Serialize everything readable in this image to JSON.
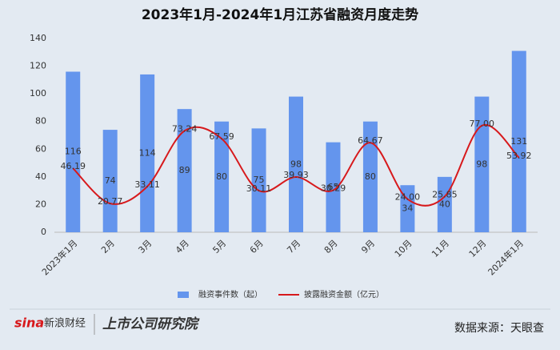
{
  "chart_data": {
    "type": "bar_line",
    "title": "2023年1月-2024年1月江苏省融资月度走势",
    "categories": [
      "2023年1月",
      "2月",
      "3月",
      "4月",
      "5月",
      "6月",
      "7月",
      "8月",
      "9月",
      "10月",
      "11月",
      "12月",
      "2024年1月"
    ],
    "series": [
      {
        "name": "融资事件数（起）",
        "type": "bar",
        "color": "#6495ed",
        "values": [
          116,
          74,
          114,
          89,
          80,
          75,
          98,
          65,
          80,
          34,
          40,
          98,
          131
        ]
      },
      {
        "name": "披露融资金额（亿元）",
        "type": "line",
        "color": "#d7191c",
        "values": [
          46.19,
          20.77,
          33.11,
          73.24,
          67.59,
          30.11,
          39.93,
          30.29,
          64.67,
          24.0,
          25.85,
          77.0,
          53.92
        ],
        "value_labels": [
          "46.19",
          "20.77",
          "33.11",
          "73.24",
          "67.59",
          "30.11",
          "39.93",
          "30.29",
          "64.67",
          "24.00",
          "25.85",
          "77.00",
          "53.92"
        ]
      }
    ],
    "ylim": [
      0,
      140
    ],
    "yticks": [
      0,
      20,
      40,
      60,
      80,
      100,
      120,
      140
    ],
    "grid": false,
    "legend": "bottom",
    "logo": "sina",
    "logo_text": "新浪财经",
    "brand": "上市公司研究院",
    "source": "数据来源：天眼查"
  }
}
